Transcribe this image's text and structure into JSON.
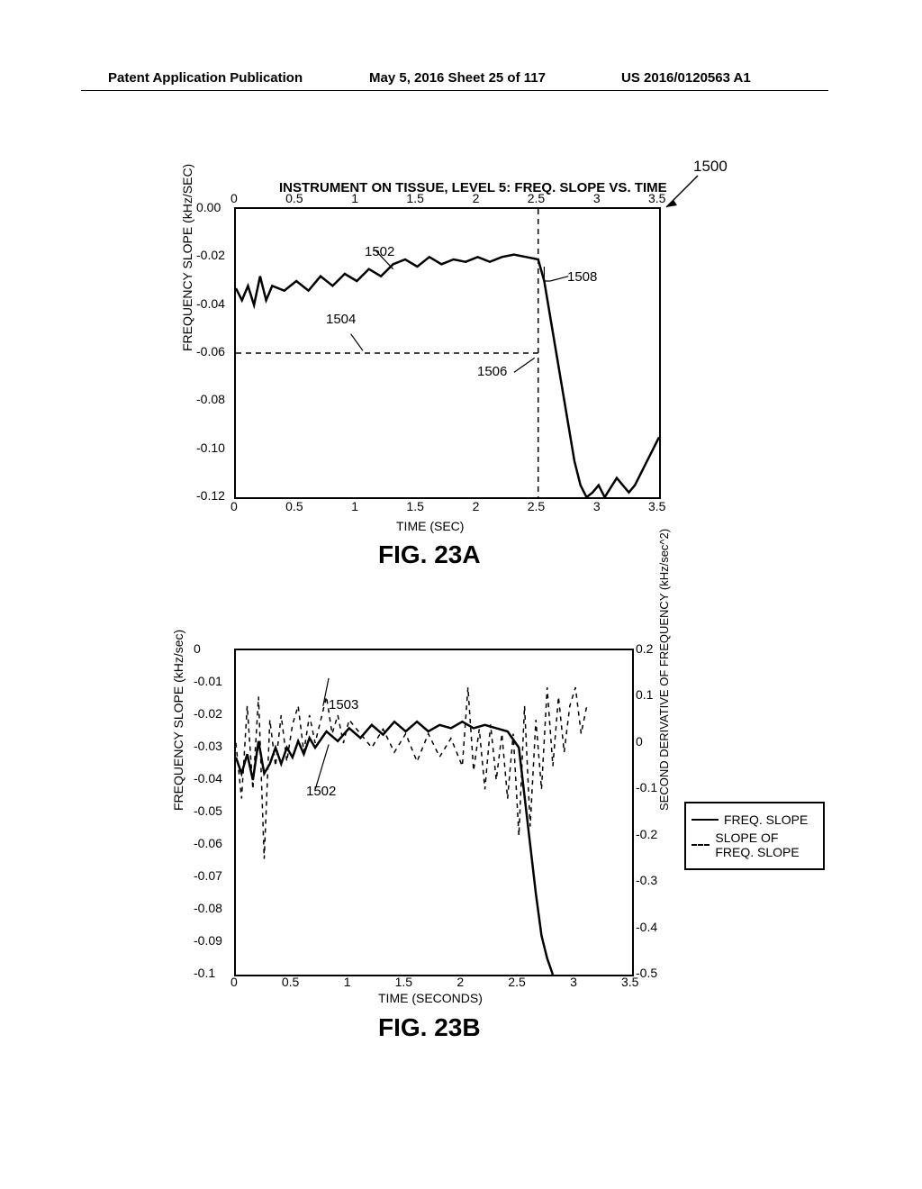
{
  "header": {
    "left": "Patent Application Publication",
    "center": "May 5, 2016  Sheet 25 of 117",
    "right": "US 2016/0120563 A1"
  },
  "chartA": {
    "type": "line",
    "title": "INSTRUMENT ON TISSUE, LEVEL 5: FREQ. SLOPE VS. TIME",
    "pointer_label": "1500",
    "xlabel": "TIME (SEC)",
    "ylabel": "FREQUENCY SLOPE (kHz/SEC)",
    "xlim": [
      0,
      3.5
    ],
    "ylim": [
      -0.12,
      0.0
    ],
    "xticks_top": [
      "0",
      "0.5",
      "1",
      "1.5",
      "2",
      "2.5",
      "3",
      "3.5"
    ],
    "xticks_bottom": [
      "0",
      "0.5",
      "1",
      "1.5",
      "2",
      "2.5",
      "3",
      "3.5"
    ],
    "yticks": [
      "0.00",
      "-0.02",
      "-0.04",
      "-0.06",
      "-0.08",
      "-0.10",
      "-0.12"
    ],
    "line_color": "#000000",
    "line_width": 2.5,
    "background_color": "#ffffff",
    "caption": "FIG. 23A",
    "annotations": {
      "1502": "1502",
      "1504": "1504",
      "1506": "1506",
      "1508": "1508"
    },
    "hline_y": -0.06,
    "hline_xrange": [
      0,
      2.5
    ],
    "vline_x": 2.5,
    "curve": [
      [
        0.0,
        -0.033
      ],
      [
        0.05,
        -0.038
      ],
      [
        0.1,
        -0.032
      ],
      [
        0.15,
        -0.04
      ],
      [
        0.2,
        -0.028
      ],
      [
        0.25,
        -0.038
      ],
      [
        0.3,
        -0.032
      ],
      [
        0.4,
        -0.034
      ],
      [
        0.5,
        -0.03
      ],
      [
        0.6,
        -0.034
      ],
      [
        0.7,
        -0.028
      ],
      [
        0.8,
        -0.032
      ],
      [
        0.9,
        -0.027
      ],
      [
        1.0,
        -0.03
      ],
      [
        1.1,
        -0.025
      ],
      [
        1.2,
        -0.028
      ],
      [
        1.3,
        -0.023
      ],
      [
        1.4,
        -0.021
      ],
      [
        1.5,
        -0.024
      ],
      [
        1.6,
        -0.02
      ],
      [
        1.7,
        -0.023
      ],
      [
        1.8,
        -0.021
      ],
      [
        1.9,
        -0.022
      ],
      [
        2.0,
        -0.02
      ],
      [
        2.1,
        -0.022
      ],
      [
        2.2,
        -0.02
      ],
      [
        2.3,
        -0.019
      ],
      [
        2.4,
        -0.02
      ],
      [
        2.5,
        -0.021
      ],
      [
        2.55,
        -0.03
      ],
      [
        2.6,
        -0.045
      ],
      [
        2.65,
        -0.06
      ],
      [
        2.7,
        -0.075
      ],
      [
        2.75,
        -0.09
      ],
      [
        2.8,
        -0.105
      ],
      [
        2.85,
        -0.115
      ],
      [
        2.9,
        -0.12
      ],
      [
        2.95,
        -0.118
      ],
      [
        3.0,
        -0.115
      ],
      [
        3.05,
        -0.12
      ],
      [
        3.1,
        -0.116
      ],
      [
        3.15,
        -0.112
      ],
      [
        3.2,
        -0.115
      ],
      [
        3.25,
        -0.118
      ],
      [
        3.3,
        -0.115
      ],
      [
        3.35,
        -0.11
      ],
      [
        3.4,
        -0.105
      ],
      [
        3.45,
        -0.1
      ],
      [
        3.5,
        -0.095
      ]
    ]
  },
  "chartB": {
    "type": "line-dual-axis",
    "xlabel": "TIME (SECONDS)",
    "ylabel_left": "FREQUENCY SLOPE (kHz/sec)",
    "ylabel_right": "SECOND DERIVATIVE OF FREQUENCY (kHz/sec^2)",
    "xlim": [
      0,
      3.5
    ],
    "ylim_left": [
      -0.1,
      0
    ],
    "ylim_right": [
      -0.5,
      0.2
    ],
    "xticks": [
      "0",
      "0.5",
      "1",
      "1.5",
      "2",
      "2.5",
      "3",
      "3.5"
    ],
    "yticks_left": [
      "0",
      "-0.01",
      "-0.02",
      "-0.03",
      "-0.04",
      "-0.05",
      "-0.06",
      "-0.07",
      "-0.08",
      "-0.09",
      "-0.1"
    ],
    "yticks_right": [
      "0.2",
      "0.1",
      "0",
      "-0.1",
      "-0.2",
      "-0.3",
      "-0.4",
      "-0.5"
    ],
    "caption": "FIG. 23B",
    "annotations": {
      "1502": "1502",
      "1503": "1503"
    },
    "legend": {
      "freq_slope": "FREQ. SLOPE",
      "slope_of": "SLOPE OF FREQ. SLOPE"
    },
    "solid_curve": [
      [
        0.0,
        -0.033
      ],
      [
        0.05,
        -0.038
      ],
      [
        0.1,
        -0.032
      ],
      [
        0.15,
        -0.04
      ],
      [
        0.2,
        -0.028
      ],
      [
        0.25,
        -0.038
      ],
      [
        0.3,
        -0.035
      ],
      [
        0.35,
        -0.03
      ],
      [
        0.4,
        -0.035
      ],
      [
        0.45,
        -0.03
      ],
      [
        0.5,
        -0.033
      ],
      [
        0.55,
        -0.028
      ],
      [
        0.6,
        -0.032
      ],
      [
        0.65,
        -0.027
      ],
      [
        0.7,
        -0.03
      ],
      [
        0.8,
        -0.025
      ],
      [
        0.9,
        -0.028
      ],
      [
        1.0,
        -0.024
      ],
      [
        1.1,
        -0.027
      ],
      [
        1.2,
        -0.023
      ],
      [
        1.3,
        -0.026
      ],
      [
        1.4,
        -0.022
      ],
      [
        1.5,
        -0.025
      ],
      [
        1.6,
        -0.022
      ],
      [
        1.7,
        -0.025
      ],
      [
        1.8,
        -0.023
      ],
      [
        1.9,
        -0.024
      ],
      [
        2.0,
        -0.022
      ],
      [
        2.1,
        -0.024
      ],
      [
        2.2,
        -0.023
      ],
      [
        2.3,
        -0.024
      ],
      [
        2.4,
        -0.025
      ],
      [
        2.5,
        -0.03
      ],
      [
        2.55,
        -0.045
      ],
      [
        2.6,
        -0.06
      ],
      [
        2.65,
        -0.075
      ],
      [
        2.7,
        -0.088
      ],
      [
        2.75,
        -0.095
      ],
      [
        2.8,
        -0.1
      ]
    ],
    "dashed_curve": [
      [
        0.0,
        0.0
      ],
      [
        0.05,
        -0.12
      ],
      [
        0.1,
        0.08
      ],
      [
        0.15,
        -0.1
      ],
      [
        0.2,
        0.1
      ],
      [
        0.25,
        -0.25
      ],
      [
        0.3,
        0.05
      ],
      [
        0.35,
        -0.05
      ],
      [
        0.4,
        0.06
      ],
      [
        0.45,
        -0.04
      ],
      [
        0.5,
        0.04
      ],
      [
        0.55,
        0.08
      ],
      [
        0.6,
        -0.02
      ],
      [
        0.65,
        0.06
      ],
      [
        0.7,
        0.0
      ],
      [
        0.75,
        0.05
      ],
      [
        0.8,
        0.1
      ],
      [
        0.85,
        0.02
      ],
      [
        0.9,
        0.06
      ],
      [
        0.95,
        0.0
      ],
      [
        1.0,
        0.05
      ],
      [
        1.1,
        0.02
      ],
      [
        1.2,
        -0.01
      ],
      [
        1.3,
        0.03
      ],
      [
        1.4,
        -0.02
      ],
      [
        1.5,
        0.02
      ],
      [
        1.6,
        -0.04
      ],
      [
        1.7,
        0.02
      ],
      [
        1.8,
        -0.03
      ],
      [
        1.9,
        0.01
      ],
      [
        2.0,
        -0.05
      ],
      [
        2.05,
        0.12
      ],
      [
        2.1,
        -0.06
      ],
      [
        2.15,
        0.03
      ],
      [
        2.2,
        -0.1
      ],
      [
        2.25,
        0.04
      ],
      [
        2.3,
        -0.08
      ],
      [
        2.35,
        0.02
      ],
      [
        2.4,
        -0.12
      ],
      [
        2.45,
        0.02
      ],
      [
        2.5,
        -0.2
      ],
      [
        2.55,
        0.08
      ],
      [
        2.6,
        -0.18
      ],
      [
        2.65,
        0.05
      ],
      [
        2.7,
        -0.1
      ],
      [
        2.75,
        0.12
      ],
      [
        2.8,
        -0.05
      ],
      [
        2.85,
        0.1
      ],
      [
        2.9,
        -0.02
      ],
      [
        2.95,
        0.08
      ],
      [
        3.0,
        0.12
      ],
      [
        3.05,
        0.02
      ],
      [
        3.1,
        0.08
      ]
    ],
    "line_color": "#000000",
    "dashed_color": "#000000",
    "solid_width": 2.5,
    "dashed_width": 1.5,
    "background_color": "#ffffff"
  }
}
